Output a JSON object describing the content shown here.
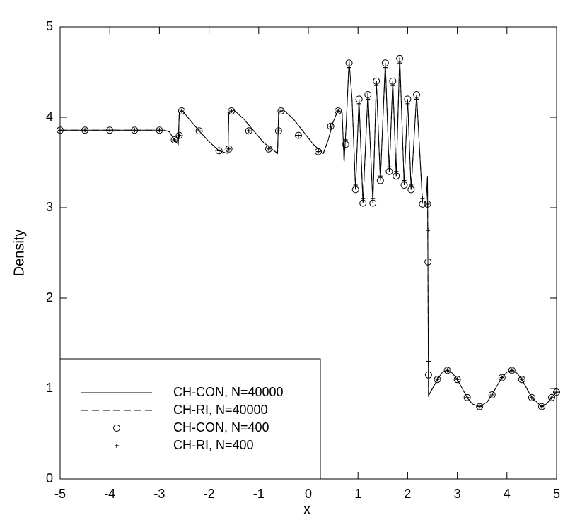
{
  "chart_data": {
    "type": "line",
    "x_label": "x",
    "y_label": "Density",
    "xlim": [
      -5,
      5
    ],
    "xticks": [
      -5,
      -4,
      -3,
      -2,
      -1,
      0,
      1,
      2,
      3,
      4,
      5
    ],
    "ylim": [
      0,
      5
    ],
    "yticks": [
      0,
      1,
      2,
      3,
      4,
      5
    ],
    "legend": "lower left",
    "series": [
      {
        "name": "CH-CON, N=40000",
        "color": "#000000",
        "style": "solid",
        "x": [
          -5,
          -4,
          -3,
          -2.9,
          -2.8,
          -2.7,
          -2.62,
          -2.6,
          -2.55,
          -2.4,
          -2.2,
          -2.0,
          -1.8,
          -1.62,
          -1.6,
          -1.5,
          -1.3,
          -1.1,
          -0.9,
          -0.62,
          -0.6,
          -0.5,
          -0.3,
          -0.1,
          0.1,
          0.3,
          0.4,
          0.5,
          0.6,
          0.68,
          0.72,
          0.76,
          0.82,
          0.88,
          0.95,
          1.02,
          1.1,
          1.2,
          1.3,
          1.37,
          1.45,
          1.55,
          1.63,
          1.7,
          1.77,
          1.84,
          1.93,
          2.0,
          2.07,
          2.18,
          2.3,
          2.37,
          2.4,
          2.42,
          2.45,
          2.5,
          2.6,
          2.7,
          2.8,
          2.9,
          3.0,
          3.1,
          3.2,
          3.3,
          3.45,
          3.6,
          3.7,
          3.8,
          3.9,
          4.0,
          4.1,
          4.2,
          4.3,
          4.4,
          4.5,
          4.7,
          4.8,
          4.9,
          5
        ],
        "values": [
          3.857,
          3.857,
          3.857,
          3.857,
          3.84,
          3.75,
          3.7,
          4.05,
          4.08,
          3.98,
          3.85,
          3.73,
          3.63,
          3.6,
          4.05,
          4.08,
          3.98,
          3.85,
          3.72,
          3.6,
          4.05,
          4.08,
          3.98,
          3.84,
          3.7,
          3.6,
          3.75,
          3.95,
          4.08,
          4.05,
          3.5,
          3.9,
          4.62,
          4.2,
          3.2,
          4.2,
          3.05,
          4.27,
          3.05,
          4.4,
          3.3,
          4.6,
          3.4,
          4.4,
          3.35,
          4.67,
          3.25,
          4.2,
          3.2,
          4.25,
          3.05,
          3.05,
          3.35,
          0.92,
          0.95,
          1.0,
          1.1,
          1.18,
          1.2,
          1.17,
          1.1,
          1.0,
          0.9,
          0.83,
          0.8,
          0.85,
          0.93,
          1.03,
          1.12,
          1.18,
          1.2,
          1.17,
          1.1,
          1.0,
          0.9,
          0.8,
          0.83,
          0.9,
          0.96
        ]
      },
      {
        "name": "CH-RI, N=40000",
        "color": "#000000",
        "style": "dashed",
        "x": [
          -5,
          -4,
          -3,
          -2.9,
          -2.8,
          -2.7,
          -2.62,
          -2.6,
          -2.55,
          -2.4,
          -2.2,
          -2.0,
          -1.8,
          -1.62,
          -1.6,
          -1.5,
          -1.3,
          -1.1,
          -0.9,
          -0.62,
          -0.6,
          -0.5,
          -0.3,
          -0.1,
          0.1,
          0.3,
          0.4,
          0.5,
          0.6,
          0.68,
          0.72,
          0.76,
          0.82,
          0.88,
          0.95,
          1.02,
          1.1,
          1.2,
          1.3,
          1.37,
          1.45,
          1.55,
          1.63,
          1.7,
          1.77,
          1.84,
          1.93,
          2.0,
          2.07,
          2.18,
          2.3,
          2.37,
          2.4,
          2.42,
          2.45,
          2.5,
          2.6,
          2.7,
          2.8,
          2.9,
          3.0,
          3.1,
          3.2,
          3.3,
          3.45,
          3.6,
          3.7,
          3.8,
          3.9,
          4.0,
          4.1,
          4.2,
          4.3,
          4.4,
          4.5,
          4.7,
          4.8,
          4.9,
          5
        ],
        "values": [
          3.857,
          3.857,
          3.857,
          3.857,
          3.84,
          3.75,
          3.7,
          4.05,
          4.08,
          3.98,
          3.85,
          3.73,
          3.63,
          3.6,
          4.05,
          4.08,
          3.98,
          3.85,
          3.72,
          3.6,
          4.05,
          4.08,
          3.98,
          3.84,
          3.7,
          3.6,
          3.75,
          3.95,
          4.08,
          4.05,
          3.5,
          3.9,
          4.62,
          4.2,
          3.2,
          4.2,
          3.05,
          4.27,
          3.05,
          4.4,
          3.3,
          4.6,
          3.4,
          4.4,
          3.35,
          4.67,
          3.25,
          4.2,
          3.2,
          4.25,
          3.05,
          3.05,
          3.35,
          0.92,
          0.95,
          1.0,
          1.1,
          1.18,
          1.2,
          1.17,
          1.1,
          1.0,
          0.9,
          0.83,
          0.8,
          0.85,
          0.93,
          1.03,
          1.12,
          1.18,
          1.2,
          1.17,
          1.1,
          1.0,
          0.9,
          0.8,
          0.83,
          0.9,
          0.96
        ]
      },
      {
        "name": "CH-CON, N=400",
        "color": "#000000",
        "marker": "circle",
        "x": [
          -5,
          -4.5,
          -4,
          -3.5,
          -3,
          -2.7,
          -2.6,
          -2.55,
          -2.2,
          -1.8,
          -1.6,
          -1.55,
          -1.2,
          -0.8,
          -0.6,
          -0.55,
          -0.2,
          0.2,
          0.45,
          0.6,
          0.75,
          0.82,
          0.95,
          1.02,
          1.1,
          1.2,
          1.3,
          1.37,
          1.45,
          1.55,
          1.63,
          1.7,
          1.77,
          1.84,
          1.93,
          2.0,
          2.07,
          2.18,
          2.3,
          2.4,
          2.41,
          2.42,
          2.6,
          2.8,
          3.0,
          3.2,
          3.45,
          3.7,
          3.9,
          4.1,
          4.3,
          4.5,
          4.7,
          4.9,
          5
        ],
        "values": [
          3.857,
          3.857,
          3.857,
          3.857,
          3.857,
          3.75,
          3.8,
          4.07,
          3.85,
          3.63,
          3.65,
          4.07,
          3.85,
          3.65,
          3.85,
          4.07,
          3.8,
          3.62,
          3.9,
          4.07,
          3.7,
          4.6,
          3.2,
          4.2,
          3.05,
          4.25,
          3.05,
          4.4,
          3.3,
          4.6,
          3.4,
          4.4,
          3.35,
          4.65,
          3.25,
          4.2,
          3.2,
          4.25,
          3.04,
          3.04,
          2.4,
          1.15,
          1.1,
          1.2,
          1.1,
          0.9,
          0.8,
          0.93,
          1.12,
          1.2,
          1.1,
          0.9,
          0.8,
          0.9,
          0.96
        ]
      },
      {
        "name": "CH-RI, N=400",
        "color": "#000000",
        "marker": "plus",
        "x": [
          -5,
          -4.5,
          -4,
          -3.5,
          -3,
          -2.7,
          -2.6,
          -2.55,
          -2.2,
          -1.8,
          -1.6,
          -1.55,
          -1.2,
          -0.8,
          -0.6,
          -0.55,
          -0.2,
          0.2,
          0.45,
          0.6,
          0.75,
          0.82,
          0.95,
          1.02,
          1.1,
          1.2,
          1.3,
          1.37,
          1.45,
          1.55,
          1.63,
          1.7,
          1.77,
          1.84,
          1.93,
          2.0,
          2.07,
          2.18,
          2.3,
          2.4,
          2.41,
          2.42,
          2.6,
          2.8,
          3.0,
          3.2,
          3.45,
          3.7,
          3.9,
          4.1,
          4.3,
          4.5,
          4.7,
          4.9,
          5
        ],
        "values": [
          3.857,
          3.857,
          3.857,
          3.857,
          3.857,
          3.75,
          3.8,
          4.07,
          3.85,
          3.63,
          3.65,
          4.07,
          3.85,
          3.65,
          3.85,
          4.07,
          3.8,
          3.62,
          3.9,
          4.07,
          3.75,
          4.55,
          3.25,
          4.15,
          3.1,
          4.2,
          3.1,
          4.35,
          3.35,
          4.55,
          3.45,
          4.35,
          3.4,
          4.6,
          3.3,
          4.15,
          3.25,
          4.2,
          3.1,
          3.04,
          2.75,
          1.3,
          1.1,
          1.2,
          1.1,
          0.9,
          0.8,
          0.93,
          1.12,
          1.2,
          1.1,
          0.9,
          0.8,
          0.9,
          0.96
        ]
      }
    ]
  }
}
